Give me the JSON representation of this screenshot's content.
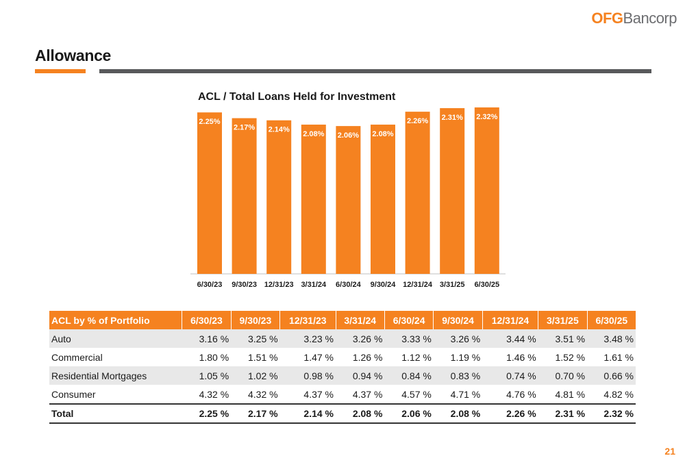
{
  "logo": {
    "ofg": "OFG",
    "bancorp": "Bancorp"
  },
  "page_title": "Allowance",
  "colors": {
    "accent": "#F58220",
    "rule_gray": "#58595b",
    "row_shade": "#e8e8e8"
  },
  "chart_data": {
    "type": "bar",
    "title": "ACL / Total Loans Held for Investment",
    "categories": [
      "6/30/23",
      "9/30/23",
      "12/31/23",
      "3/31/24",
      "6/30/24",
      "9/30/24",
      "12/31/24",
      "3/31/25",
      "6/30/25"
    ],
    "values": [
      2.25,
      2.17,
      2.14,
      2.08,
      2.06,
      2.08,
      2.26,
      2.31,
      2.32
    ],
    "data_labels": [
      "2.25%",
      "2.17%",
      "2.14%",
      "2.08%",
      "2.06%",
      "2.08%",
      "2.26%",
      "2.31%",
      "2.32%"
    ],
    "ylim": [
      0,
      2.5
    ],
    "grid": false,
    "color": "#F58220"
  },
  "table": {
    "header": [
      "ACL by % of Portfolio",
      "6/30/23",
      "9/30/23",
      "12/31/23",
      "3/31/24",
      "6/30/24",
      "9/30/24",
      "12/31/24",
      "3/31/25",
      "6/30/25"
    ],
    "rows": [
      {
        "label": "Auto",
        "values": [
          "3.16 %",
          "3.25 %",
          "3.23 %",
          "3.26 %",
          "3.33 %",
          "3.26 %",
          "3.44 %",
          "3.51 %",
          "3.48 %"
        ]
      },
      {
        "label": "Commercial",
        "values": [
          "1.80 %",
          "1.51 %",
          "1.47 %",
          "1.26 %",
          "1.12 %",
          "1.19 %",
          "1.46 %",
          "1.52 %",
          "1.61 %"
        ]
      },
      {
        "label": "Residential Mortgages",
        "values": [
          "1.05 %",
          "1.02 %",
          "0.98 %",
          "0.94 %",
          "0.84 %",
          "0.83 %",
          "0.74 %",
          "0.70 %",
          "0.66 %"
        ]
      },
      {
        "label": "Consumer",
        "values": [
          "4.32 %",
          "4.32 %",
          "4.37 %",
          "4.37 %",
          "4.57 %",
          "4.71 %",
          "4.76 %",
          "4.81 %",
          "4.82 %"
        ]
      }
    ],
    "total": {
      "label": "Total",
      "values": [
        "2.25 %",
        "2.17 %",
        "2.14 %",
        "2.08 %",
        "2.06 %",
        "2.08 %",
        "2.26 %",
        "2.31 %",
        "2.32 %"
      ]
    }
  },
  "page_number": "21"
}
